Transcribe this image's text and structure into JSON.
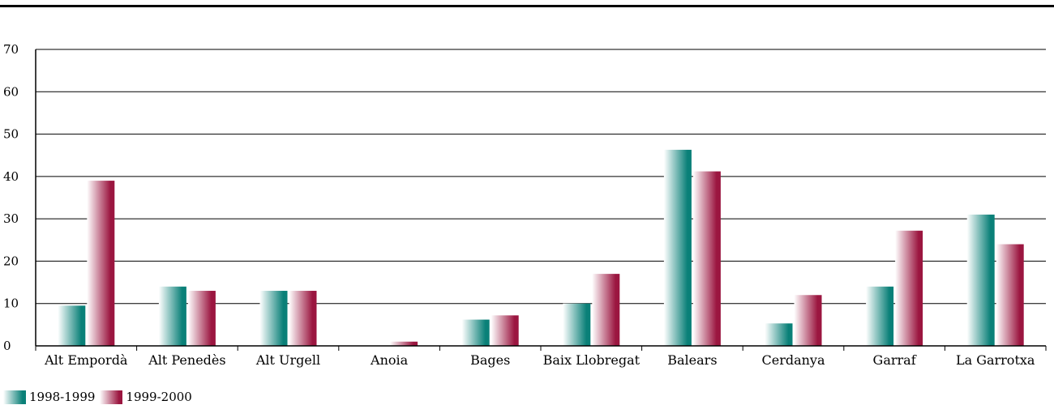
{
  "colors": {
    "series_1": "#0a8078",
    "series_2": "#9b1640",
    "grid": "#000000"
  },
  "chart_data": {
    "type": "bar",
    "title": "",
    "xlabel": "",
    "ylabel": "",
    "ylim": [
      0,
      70
    ],
    "yticks": [
      0,
      10,
      20,
      30,
      40,
      50,
      60,
      70
    ],
    "grid": true,
    "legend": "bottom-left",
    "categories": [
      "Alt Empordà",
      "Alt Penedès",
      "Alt Urgell",
      "Anoia",
      "Bages",
      "Baix Llobregat",
      "Balears",
      "Cerdanya",
      "Garraf",
      "La Garrotxa"
    ],
    "series": [
      {
        "name": "1998-1999",
        "values": [
          9.5,
          14,
          13,
          0,
          6.2,
          10,
          46.3,
          5.3,
          14,
          31
        ]
      },
      {
        "name": "1999-2000",
        "values": [
          39,
          13,
          13,
          1,
          7.2,
          17,
          41.2,
          12,
          27.2,
          24
        ]
      }
    ]
  }
}
